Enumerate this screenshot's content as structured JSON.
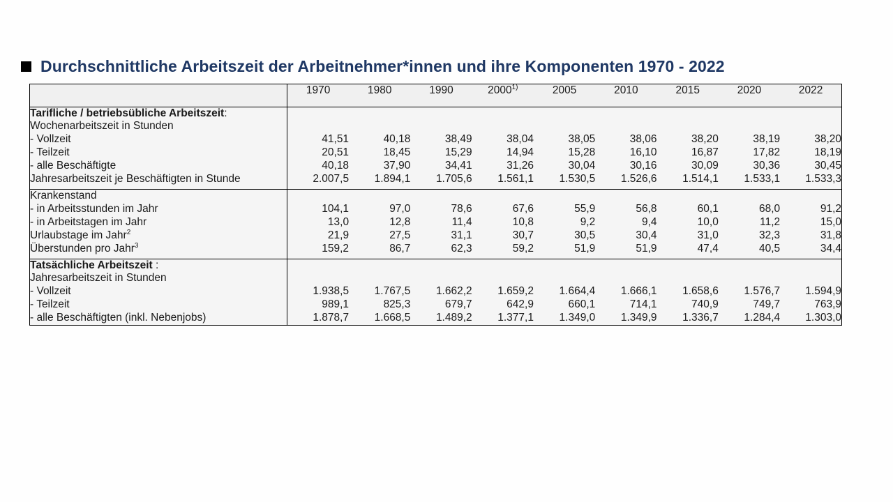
{
  "title": "Durchschnittliche Arbeitszeit der Arbeitnehmer*innen und ihre Komponenten 1970 - 2022",
  "years": [
    "1970",
    "1980",
    "1990",
    "2000",
    "2005",
    "2010",
    "2015",
    "2020",
    "2022"
  ],
  "year_2000_note": "1)",
  "section1": {
    "heading_bold": "Tarifliche / betriebsübliche Arbeitszeit",
    "heading_suffix": ":",
    "subheading": "Wochenarbeitszeit in Stunden",
    "rows": [
      {
        "label": "- Vollzeit",
        "values": [
          "41,51",
          "40,18",
          "38,49",
          "38,04",
          "38,05",
          "38,06",
          "38,20",
          "38,19",
          "38,20"
        ]
      },
      {
        "label": "- Teilzeit",
        "values": [
          "20,51",
          "18,45",
          "15,29",
          "14,94",
          "15,28",
          "16,10",
          "16,87",
          "17,82",
          "18,19"
        ]
      },
      {
        "label": "- alle Beschäftigte",
        "values": [
          "40,18",
          "37,90",
          "34,41",
          "31,26",
          "30,04",
          "30,16",
          "30,09",
          "30,36",
          "30,45"
        ]
      },
      {
        "label": "Jahresarbeitszeit je Beschäftigten in Stunde",
        "values": [
          "2.007,5",
          "1.894,1",
          "1.705,6",
          "1.561,1",
          "1.530,5",
          "1.526,6",
          "1.514,1",
          "1.533,1",
          "1.533,3"
        ]
      }
    ]
  },
  "section2": {
    "heading": "Krankenstand",
    "rows": [
      {
        "label": "- in Arbeitsstunden im Jahr",
        "values": [
          "104,1",
          "97,0",
          "78,6",
          "67,6",
          "55,9",
          "56,8",
          "60,1",
          "68,0",
          "91,2"
        ]
      },
      {
        "label": "- in Arbeitstagen im Jahr",
        "values": [
          "13,0",
          "12,8",
          "11,4",
          "10,8",
          "9,2",
          "9,4",
          "10,0",
          "11,2",
          "15,0"
        ]
      },
      {
        "label": "Urlaubstage im Jahr",
        "note": "2",
        "values": [
          "21,9",
          "27,5",
          "31,1",
          "30,7",
          "30,5",
          "30,4",
          "31,0",
          "32,3",
          "31,8"
        ]
      },
      {
        "label": "Überstunden pro Jahr",
        "note": "3",
        "values": [
          "159,2",
          "86,7",
          "62,3",
          "59,2",
          "51,9",
          "51,9",
          "47,4",
          "40,5",
          "34,4"
        ]
      }
    ]
  },
  "section3": {
    "heading_bold": "Tatsächliche Arbeitszeit",
    "heading_suffix": " :",
    "subheading": "Jahresarbeitszeit in Stunden",
    "rows": [
      {
        "label": "- Vollzeit",
        "values": [
          "1.938,5",
          "1.767,5",
          "1.662,2",
          "1.659,2",
          "1.664,4",
          "1.666,1",
          "1.658,6",
          "1.576,7",
          "1.594,9"
        ]
      },
      {
        "label": "- Teilzeit",
        "values": [
          "989,1",
          "825,3",
          "679,7",
          "642,9",
          "660,1",
          "714,1",
          "740,9",
          "749,7",
          "763,9"
        ]
      },
      {
        "label": "- alle Beschäftigten (inkl. Nebenjobs)",
        "values": [
          "1.878,7",
          "1.668,5",
          "1.489,2",
          "1.377,1",
          "1.349,0",
          "1.349,9",
          "1.336,7",
          "1.284,4",
          "1.303,0"
        ]
      }
    ]
  }
}
